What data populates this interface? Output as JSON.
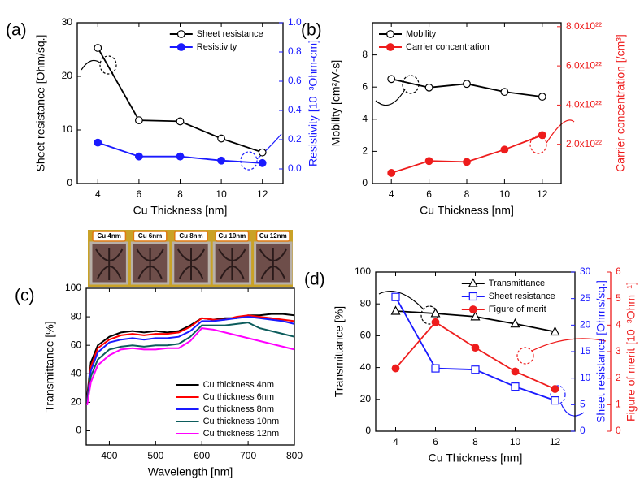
{
  "chart_data": [
    {
      "type": "line",
      "panel_label": "(a)",
      "x_label": "Cu Thickness [nm]",
      "y_label": "Sheet resistance [Ohm/sq.]",
      "y2_label": "Resistivity [10⁻³Ohm-cm]",
      "x": [
        4,
        6,
        8,
        10,
        12
      ],
      "xlim": [
        3,
        13
      ],
      "xticks": [
        4,
        6,
        8,
        10,
        12
      ],
      "ylim": [
        0,
        30
      ],
      "yticks": [
        0,
        10,
        20,
        30
      ],
      "y2lim": [
        -0.1,
        1.0
      ],
      "y2ticks": [
        {
          "value": 0,
          "label": "0.0"
        },
        0.2,
        0.4,
        0.6,
        0.8,
        {
          "value": 1,
          "label": "1.0"
        }
      ],
      "legend": "top-right",
      "series": [
        {
          "name": "Sheet resistance",
          "color": "#000000",
          "marker": "circle",
          "marker_fill": "open",
          "values": [
            25.3,
            11.8,
            11.6,
            8.4,
            5.8
          ]
        },
        {
          "name": "Resistivity",
          "color": "#1a1aff",
          "marker": "circle",
          "marker_fill": "filled",
          "axis": "y2",
          "values": [
            0.18,
            0.085,
            0.085,
            0.057,
            0.04
          ]
        }
      ]
    },
    {
      "type": "line",
      "panel_label": "(b)",
      "x_label": "Cu Thickness [nm]",
      "y_label": "Mobility [cm²/V-s]",
      "y2_label": "Carrier concentration [/cm³]",
      "x": [
        4,
        6,
        8,
        10,
        12
      ],
      "xlim": [
        3,
        13
      ],
      "xticks": [
        4,
        6,
        8,
        10,
        12
      ],
      "ylim": [
        0,
        10
      ],
      "yticks": [
        0,
        2,
        4,
        6,
        8
      ],
      "y2lim": [
        0,
        8.2e+22
      ],
      "y2ticks": [
        {
          "value": 2e+22,
          "label": "2.0x10²²"
        },
        {
          "value": 4e+22,
          "label": "4.0x10²²"
        },
        {
          "value": 6e+22,
          "label": "6.0x10²²"
        },
        {
          "value": 8e+22,
          "label": "8.0x10²²"
        }
      ],
      "legend": "top-left",
      "series": [
        {
          "name": "Mobility",
          "color": "#000000",
          "marker": "circle",
          "marker_fill": "open",
          "values": [
            6.5,
            5.97,
            6.2,
            5.7,
            5.4
          ]
        },
        {
          "name": "Carrier concentration",
          "color": "#ee1c1c",
          "marker": "circle",
          "marker_fill": "filled",
          "axis": "y2",
          "values": [
            5.4e+21,
            1.15e+22,
            1.1e+22,
            1.73e+22,
            2.47e+22
          ]
        }
      ]
    },
    {
      "type": "line",
      "panel_label": "(c)",
      "x_label": "Wavelength [nm]",
      "y_label": "Transmittance [%]",
      "sample_labels": [
        "Cu 4nm",
        "Cu 6nm",
        "Cu 8nm",
        "Cu 10nm",
        "Cu 12nm"
      ],
      "x": [
        352,
        360,
        375,
        400,
        425,
        450,
        475,
        500,
        525,
        550,
        575,
        600,
        625,
        650,
        675,
        700,
        725,
        750,
        775,
        800
      ],
      "xlim": [
        350,
        800
      ],
      "xticks": [
        400,
        500,
        600,
        700,
        800
      ],
      "ylim": [
        -10,
        100
      ],
      "yticks": [
        0,
        20,
        40,
        60,
        80,
        100
      ],
      "legend": "bottom-right",
      "series": [
        {
          "name": "Cu thickness 4nm",
          "color": "#000000",
          "values": [
            24,
            48,
            60,
            66,
            69,
            70,
            69,
            70,
            69,
            70,
            74,
            79,
            78,
            79,
            79,
            81,
            81,
            82,
            82,
            81
          ]
        },
        {
          "name": "Cu thickness 6nm",
          "color": "#ff0000",
          "values": [
            22,
            45,
            58,
            64,
            67,
            68,
            67,
            68,
            68,
            69,
            73,
            79,
            78,
            78,
            80,
            81,
            80,
            79,
            78,
            77
          ]
        },
        {
          "name": "Cu thickness 8nm",
          "color": "#1a1aff",
          "values": [
            21,
            42,
            55,
            62,
            64,
            65,
            64,
            65,
            65,
            66,
            70,
            77,
            77,
            78,
            79,
            80,
            79,
            78,
            77,
            75
          ]
        },
        {
          "name": "Cu thickness 10nm",
          "color": "#0c5c5c",
          "values": [
            20,
            38,
            50,
            57,
            59,
            60,
            59,
            60,
            60,
            61,
            66,
            74,
            74,
            74,
            75,
            76,
            72,
            70,
            68,
            66
          ]
        },
        {
          "name": "Cu thickness 12nm",
          "color": "#ff00ff",
          "values": [
            18,
            34,
            46,
            53,
            57,
            58,
            57,
            57,
            58,
            58,
            63,
            72,
            71,
            69,
            67,
            65,
            63,
            61,
            59,
            57
          ]
        }
      ]
    },
    {
      "type": "line",
      "panel_label": "(d)",
      "x_label": "Cu Thickness [nm]",
      "y_label": "Transmittance [%]",
      "y2_label": "Sheet resistance [Ohms/sq.]",
      "y3_label": "Figure of merit [10⁻³Ohm⁻¹]",
      "x": [
        4,
        6,
        8,
        10,
        12
      ],
      "xlim": [
        3,
        13
      ],
      "xticks": [
        4,
        6,
        8,
        10,
        12
      ],
      "ylim": [
        0,
        100
      ],
      "yticks": [
        0,
        20,
        40,
        60,
        80,
        100
      ],
      "y2lim": [
        0,
        30
      ],
      "y2ticks": [
        0,
        5,
        10,
        15,
        20,
        25,
        30
      ],
      "y3lim": [
        0,
        6
      ],
      "y3ticks": [
        0,
        1,
        2,
        3,
        4,
        5,
        6
      ],
      "legend": "top-right",
      "series": [
        {
          "name": "Transmittance",
          "color": "#000000",
          "marker": "triangle",
          "marker_fill": "open",
          "values": [
            75.5,
            74,
            72,
            67.5,
            62.5
          ]
        },
        {
          "name": "Sheet resistance",
          "color": "#1a1aff",
          "marker": "square",
          "marker_fill": "open",
          "axis": "y2",
          "values": [
            25.3,
            11.85,
            11.6,
            8.4,
            5.8
          ]
        },
        {
          "name": "Figure of merit",
          "color": "#ee1c1c",
          "marker": "circle",
          "marker_fill": "filled",
          "axis": "y3",
          "values": [
            2.37,
            4.11,
            3.15,
            2.25,
            1.59
          ]
        }
      ]
    }
  ]
}
